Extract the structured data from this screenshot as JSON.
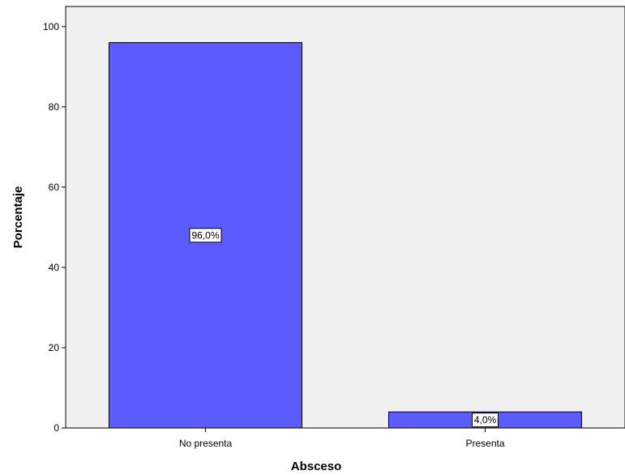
{
  "chart_data": {
    "type": "bar",
    "categories": [
      "No presenta",
      "Presenta"
    ],
    "values": [
      96.0,
      4.0
    ],
    "data_labels": [
      "96,0%",
      "4,0%"
    ],
    "xlabel": "Absceso",
    "ylabel": "Porcentaje",
    "ylim": [
      0,
      105
    ],
    "yticks": [
      0,
      20,
      40,
      60,
      80,
      100
    ],
    "ytick_labels": [
      "0",
      "20",
      "40",
      "60",
      "80",
      "100"
    ],
    "grid": false,
    "colors": {
      "bar_fill": "#5b5bff",
      "bar_stroke": "#000000",
      "plot_background": "#f0f0f0",
      "label_box": "#ffffff"
    }
  }
}
